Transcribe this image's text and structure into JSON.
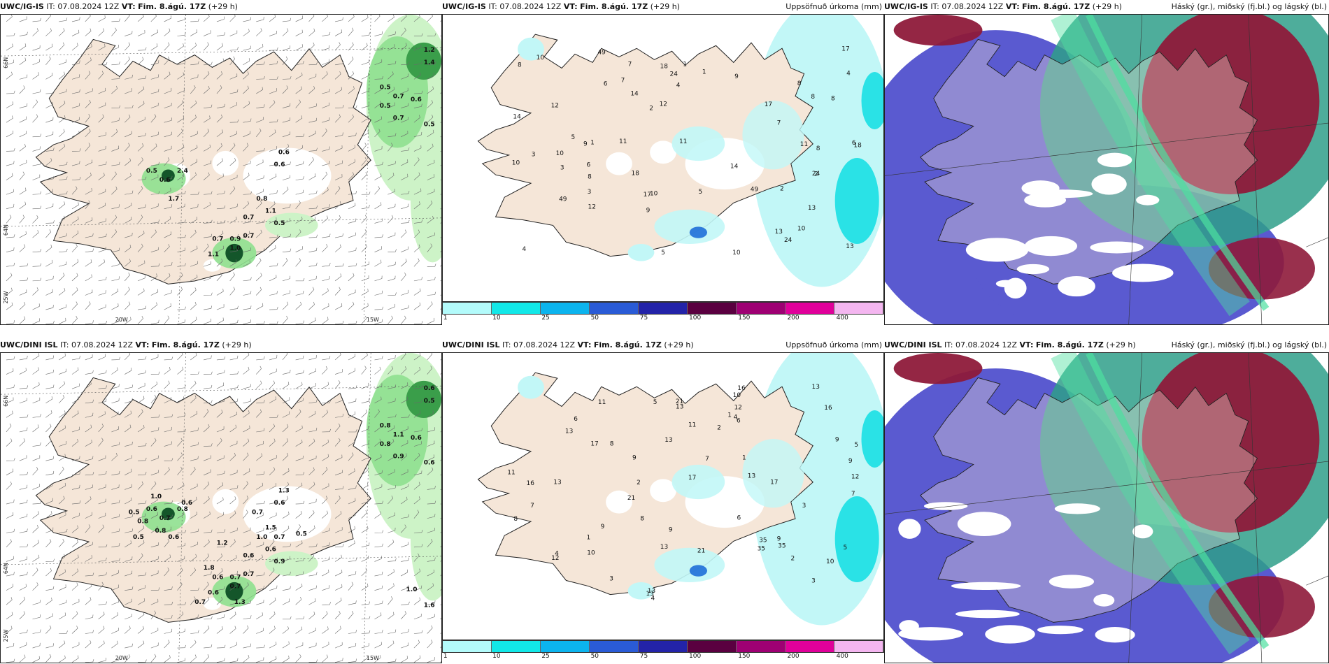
{
  "common": {
    "init_label": "IT:",
    "init_time": "07.08.2024 12Z",
    "valid_label": "VT:",
    "valid_time": "Fim. 8.ágú. 17Z",
    "lead": "(+29 h)",
    "precip_title": "Uppsöfnuð úrkoma (mm)",
    "cloud_title": "Háský (gr.), miðský (fj.bl.) og lágský (bl.)"
  },
  "rows": [
    {
      "model": "UWC/IG-IS"
    },
    {
      "model": "UWC/DINI ISL"
    }
  ],
  "axes": {
    "lon_labels": [
      "20W",
      "15W",
      "25W"
    ],
    "lat_labels": [
      "66N",
      "64N"
    ]
  },
  "legend": {
    "ticks": [
      "1",
      "10",
      "25",
      "50",
      "75",
      "100",
      "150",
      "200",
      "400"
    ],
    "colors": [
      "#b3fbfb",
      "#12e8e8",
      "#0cb4ee",
      "#2a5bd6",
      "#2323a8",
      "#5a0040",
      "#9e0073",
      "#e0009a",
      "#f4b6f0"
    ]
  },
  "panel_a_top_values": [
    "0.5",
    "0.7",
    "0.6",
    "0.5",
    "0.7",
    "0.5",
    "1.2",
    "1.4",
    "0.6",
    "0.6",
    "0.8",
    "0.5",
    "1.1",
    "0.9",
    "0.7",
    "0.7",
    "0.7",
    "1.0",
    "1.1",
    "2.4",
    "0.5",
    "0.6",
    "1.7"
  ],
  "panel_a_bottom_values": [
    "0.8",
    "1.1",
    "0.6",
    "0.8",
    "0.9",
    "0.6",
    "0.6",
    "0.5",
    "0.6",
    "1.3",
    "1.0",
    "0.9",
    "0.6",
    "0.7",
    "0.7",
    "0.6",
    "0.6",
    "0.7",
    "0.6",
    "0.8",
    "0.6",
    "0.7",
    "0.6",
    "0.8",
    "1.0",
    "0.5",
    "0.7",
    "1.3",
    "1.0",
    "1.6",
    "1.5",
    "0.8",
    "0.6",
    "0.7",
    "0.7",
    "0.5",
    "1.8",
    "1.2",
    "0.5"
  ],
  "panel_b_top_values": [
    "1",
    "2",
    "3",
    "4",
    "5",
    "6",
    "7",
    "8",
    "9",
    "10",
    "11",
    "12",
    "13",
    "14",
    "17",
    "18",
    "24",
    "49",
    "8",
    "10"
  ],
  "panel_b_bottom_values": [
    "1",
    "2",
    "3",
    "4",
    "5",
    "6",
    "7",
    "8",
    "9",
    "10",
    "11",
    "12",
    "13",
    "16",
    "17",
    "21",
    "35",
    "9",
    "13",
    "13"
  ],
  "colors": {
    "land": "#f5e6d8",
    "coast": "#222222",
    "rain_light": "#cdf3c7",
    "rain_mid": "#8fe08f",
    "rain_dark": "#3a9e4a",
    "rain_darkest": "#14562a",
    "precip_light": "#c2f7f7",
    "precip_mid": "#2ae2e6",
    "precip_blue": "#1f6fd8",
    "cloud_low": "#5a5ad0",
    "cloud_mid": "#2f9f8a",
    "cloud_high": "#8e1a3a",
    "cloud_green": "#4de0a0"
  }
}
